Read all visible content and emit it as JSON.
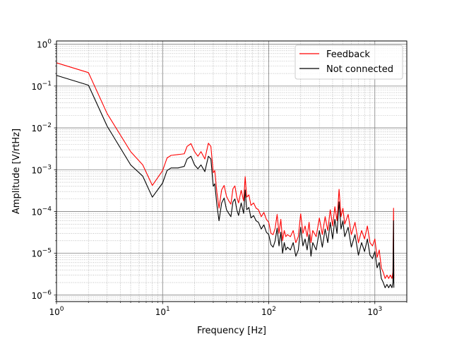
{
  "chart_data": {
    "type": "line",
    "xlabel": "Frequency [Hz]",
    "ylabel": "Amplitude [V/rtHz]",
    "xscale": "log",
    "yscale": "log",
    "xlim": [
      1,
      2000
    ],
    "ylim": [
      7e-07,
      1.2
    ],
    "grid": "major and minor",
    "legend_position": "top-right",
    "x_ticks": [
      {
        "value": 1,
        "base": "10",
        "exp": "0"
      },
      {
        "value": 10,
        "base": "10",
        "exp": "1"
      },
      {
        "value": 100,
        "base": "10",
        "exp": "2"
      },
      {
        "value": 1000,
        "base": "10",
        "exp": "3"
      }
    ],
    "y_ticks": [
      {
        "value": 1e-06,
        "base": "10",
        "exp": "−6"
      },
      {
        "value": 1e-05,
        "base": "10",
        "exp": "−5"
      },
      {
        "value": 0.0001,
        "base": "10",
        "exp": "−4"
      },
      {
        "value": 0.001,
        "base": "10",
        "exp": "−3"
      },
      {
        "value": 0.01,
        "base": "10",
        "exp": "−2"
      },
      {
        "value": 0.1,
        "base": "10",
        "exp": "−1"
      },
      {
        "value": 1,
        "base": "10",
        "exp": "0"
      }
    ],
    "series": [
      {
        "name": "Feedback",
        "color": "#ff0000",
        "points": [
          [
            1,
            0.36
          ],
          [
            2,
            0.21
          ],
          [
            3,
            0.022
          ],
          [
            5,
            0.0027
          ],
          [
            6.5,
            0.0013
          ],
          [
            8,
            0.00042
          ],
          [
            10,
            0.00095
          ],
          [
            11,
            0.0019
          ],
          [
            12,
            0.0022
          ],
          [
            14,
            0.0023
          ],
          [
            16,
            0.0024
          ],
          [
            17,
            0.0036
          ],
          [
            18.5,
            0.0042
          ],
          [
            20,
            0.0027
          ],
          [
            21.5,
            0.0021
          ],
          [
            23,
            0.0027
          ],
          [
            25,
            0.0018
          ],
          [
            27,
            0.0043
          ],
          [
            28.5,
            0.0036
          ],
          [
            30,
            0.00085
          ],
          [
            31,
            0.00095
          ],
          [
            32.5,
            0.00028
          ],
          [
            34,
            0.00012
          ],
          [
            36,
            0.00033
          ],
          [
            38,
            0.00042
          ],
          [
            40,
            0.00023
          ],
          [
            42,
            0.00018
          ],
          [
            44,
            0.00015
          ],
          [
            46,
            0.00035
          ],
          [
            48,
            0.00041
          ],
          [
            50,
            0.00022
          ],
          [
            52,
            0.00016
          ],
          [
            55,
            0.00032
          ],
          [
            58,
            0.00018
          ],
          [
            60,
            0.00068
          ],
          [
            62,
            0.00022
          ],
          [
            65,
            0.00025
          ],
          [
            68,
            0.00014
          ],
          [
            72,
            0.00016
          ],
          [
            76,
            0.00012
          ],
          [
            80,
            0.00011
          ],
          [
            85,
            7.5e-05
          ],
          [
            90,
            9.5e-05
          ],
          [
            95,
            6.5e-05
          ],
          [
            100,
            5.5e-05
          ],
          [
            105,
            3e-05
          ],
          [
            110,
            2.8e-05
          ],
          [
            115,
            4e-05
          ],
          [
            120,
            8.5e-05
          ],
          [
            125,
            3e-05
          ],
          [
            130,
            6.5e-05
          ],
          [
            135,
            2e-05
          ],
          [
            140,
            3.5e-05
          ],
          [
            145,
            2.5e-05
          ],
          [
            150,
            2.8e-05
          ],
          [
            160,
            2.5e-05
          ],
          [
            170,
            3.5e-05
          ],
          [
            180,
            1.8e-05
          ],
          [
            190,
            2.5e-05
          ],
          [
            200,
            8.8e-05
          ],
          [
            210,
            3e-05
          ],
          [
            220,
            4.5e-05
          ],
          [
            230,
            2.5e-05
          ],
          [
            240,
            5.5e-05
          ],
          [
            250,
            1.8e-05
          ],
          [
            260,
            3.5e-05
          ],
          [
            280,
            2.5e-05
          ],
          [
            300,
            7e-05
          ],
          [
            320,
            2.8e-05
          ],
          [
            340,
            7.5e-05
          ],
          [
            360,
            3.5e-05
          ],
          [
            380,
            0.00011
          ],
          [
            400,
            4.5e-05
          ],
          [
            420,
            0.00013
          ],
          [
            440,
            6e-05
          ],
          [
            460,
            0.00034
          ],
          [
            480,
            7.5e-05
          ],
          [
            500,
            0.00012
          ],
          [
            520,
            5e-05
          ],
          [
            560,
            8.5e-05
          ],
          [
            600,
            2.8e-05
          ],
          [
            650,
            5.5e-05
          ],
          [
            700,
            1.8e-05
          ],
          [
            750,
            3.5e-05
          ],
          [
            800,
            2.2e-05
          ],
          [
            850,
            4.5e-05
          ],
          [
            900,
            1.8e-05
          ],
          [
            950,
            1.5e-05
          ],
          [
            1000,
            2.2e-05
          ],
          [
            1050,
            8e-06
          ],
          [
            1100,
            1.2e-05
          ],
          [
            1150,
            4.5e-06
          ],
          [
            1200,
            3.5e-06
          ],
          [
            1250,
            2.5e-06
          ],
          [
            1300,
            3e-06
          ],
          [
            1350,
            2.5e-06
          ],
          [
            1400,
            3e-06
          ],
          [
            1450,
            2.5e-06
          ],
          [
            1480,
            3.5e-06
          ],
          [
            1500,
            0.00012
          ],
          [
            1510,
            2.5e-06
          ]
        ]
      },
      {
        "name": "Not connected",
        "color": "#000000",
        "points": [
          [
            1,
            0.18
          ],
          [
            2,
            0.105
          ],
          [
            3,
            0.011
          ],
          [
            5,
            0.0013
          ],
          [
            6.5,
            0.0007
          ],
          [
            8,
            0.00022
          ],
          [
            10,
            0.00048
          ],
          [
            11,
            0.00095
          ],
          [
            12,
            0.0011
          ],
          [
            14,
            0.0011
          ],
          [
            16,
            0.0012
          ],
          [
            17,
            0.0018
          ],
          [
            18.5,
            0.0021
          ],
          [
            20,
            0.0013
          ],
          [
            21.5,
            0.00105
          ],
          [
            23,
            0.0013
          ],
          [
            25,
            0.0009
          ],
          [
            27,
            0.0021
          ],
          [
            28.5,
            0.0018
          ],
          [
            30,
            0.0004
          ],
          [
            31,
            0.00046
          ],
          [
            32.5,
            0.00014
          ],
          [
            34,
            6e-05
          ],
          [
            36,
            0.00016
          ],
          [
            38,
            0.00021
          ],
          [
            40,
            0.00011
          ],
          [
            42,
            9e-05
          ],
          [
            44,
            7.5e-05
          ],
          [
            46,
            0.00017
          ],
          [
            48,
            0.0002
          ],
          [
            50,
            0.00011
          ],
          [
            52,
            8e-05
          ],
          [
            55,
            0.00016
          ],
          [
            58,
            9e-05
          ],
          [
            60,
            0.00033
          ],
          [
            62,
            0.00011
          ],
          [
            65,
            0.000125
          ],
          [
            68,
            7e-05
          ],
          [
            72,
            8e-05
          ],
          [
            76,
            6e-05
          ],
          [
            80,
            5.5e-05
          ],
          [
            85,
            3.8e-05
          ],
          [
            90,
            4.8e-05
          ],
          [
            95,
            3.2e-05
          ],
          [
            100,
            2.8e-05
          ],
          [
            105,
            1.6e-05
          ],
          [
            110,
            1.4e-05
          ],
          [
            115,
            2e-05
          ],
          [
            120,
            4e-05
          ],
          [
            125,
            1.5e-05
          ],
          [
            130,
            3.2e-05
          ],
          [
            135,
            1e-05
          ],
          [
            140,
            1.8e-05
          ],
          [
            145,
            1.2e-05
          ],
          [
            150,
            1.4e-05
          ],
          [
            160,
            1.2e-05
          ],
          [
            170,
            1.8e-05
          ],
          [
            180,
            8.5e-06
          ],
          [
            190,
            1.2e-05
          ],
          [
            200,
            4.2e-05
          ],
          [
            210,
            1.5e-05
          ],
          [
            220,
            2.2e-05
          ],
          [
            230,
            1.2e-05
          ],
          [
            240,
            2.8e-05
          ],
          [
            250,
            8.5e-06
          ],
          [
            260,
            1.8e-05
          ],
          [
            280,
            1.2e-05
          ],
          [
            300,
            3.5e-05
          ],
          [
            320,
            1.4e-05
          ],
          [
            340,
            3.8e-05
          ],
          [
            360,
            1.8e-05
          ],
          [
            380,
            5.5e-05
          ],
          [
            400,
            2.2e-05
          ],
          [
            420,
            6.5e-05
          ],
          [
            440,
            3e-05
          ],
          [
            460,
            0.00017
          ],
          [
            480,
            3.8e-05
          ],
          [
            500,
            6e-05
          ],
          [
            520,
            2.5e-05
          ],
          [
            560,
            4.2e-05
          ],
          [
            600,
            1.4e-05
          ],
          [
            650,
            2.8e-05
          ],
          [
            700,
            9e-06
          ],
          [
            750,
            1.8e-05
          ],
          [
            800,
            1.1e-05
          ],
          [
            850,
            2.2e-05
          ],
          [
            900,
            9e-06
          ],
          [
            950,
            7.5e-06
          ],
          [
            1000,
            1.1e-05
          ],
          [
            1050,
            4.5e-06
          ],
          [
            1100,
            6e-06
          ],
          [
            1150,
            2.5e-06
          ],
          [
            1200,
            2e-06
          ],
          [
            1250,
            1.5e-06
          ],
          [
            1300,
            1.8e-06
          ],
          [
            1350,
            1.5e-06
          ],
          [
            1400,
            1.8e-06
          ],
          [
            1450,
            1.5e-06
          ],
          [
            1480,
            2e-06
          ],
          [
            1500,
            6e-05
          ],
          [
            1510,
            1.5e-06
          ]
        ]
      }
    ]
  }
}
